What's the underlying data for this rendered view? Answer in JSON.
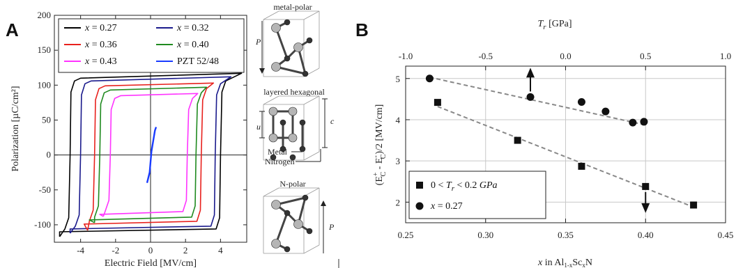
{
  "panel_a": {
    "letter": "A",
    "structure_labels": {
      "metal_polar": "metal-polar",
      "layered_hexagonal": "layered hexagonal",
      "n_polar": "N-polar",
      "p_top": "P",
      "p_bottom": "P",
      "u": "u",
      "c": "c",
      "metal": "Metal",
      "nitrogen": "Nitrogen"
    }
  },
  "panel_b": {
    "letter": "B"
  },
  "colors": {
    "x027": "#000000",
    "x032": "#1a1a8c",
    "x036": "#e8211d",
    "x040": "#1f8a1f",
    "x043": "#ff33ff",
    "pzt": "#1a3cff",
    "grid": "#c8c8c8",
    "fit": "#888888"
  },
  "chart_data": [
    {
      "type": "line",
      "xlabel": "Electric Field [MV/cm]",
      "ylabel": "Polarization [µC/cm²]",
      "xlim": [
        -5.5,
        5.5
      ],
      "ylim": [
        -125,
        200
      ],
      "xticks": [
        -4,
        -2,
        0,
        2,
        4
      ],
      "yticks": [
        -100,
        -50,
        0,
        50,
        100,
        150,
        200
      ],
      "legend_position": "top-left",
      "series": [
        {
          "name": "x = 0.27",
          "legend_var": "x",
          "legend_val": " = 0.27",
          "color_key": "x027",
          "loop": {
            "ec_pos": 4.0,
            "ec_neg": -4.6,
            "ps": 110,
            "xmax": 5.2,
            "pmax": 117,
            "xmin": -5.2,
            "pmin": -117
          }
        },
        {
          "name": "x = 0.32",
          "legend_var": "x",
          "legend_val": " = 0.32",
          "color_key": "x032",
          "loop": {
            "ec_pos": 3.7,
            "ec_neg": -4.0,
            "ps": 106,
            "xmax": 4.6,
            "pmax": 112,
            "xmin": -4.6,
            "pmin": -112
          }
        },
        {
          "name": "x = 0.36",
          "legend_var": "x",
          "legend_val": " = 0.36",
          "color_key": "x036",
          "loop": {
            "ec_pos": 2.9,
            "ec_neg": -3.2,
            "ps": 99,
            "xmax": 3.6,
            "pmax": 103,
            "xmin": -3.6,
            "pmin": -108
          }
        },
        {
          "name": "x = 0.40",
          "legend_var": "x",
          "legend_val": " = 0.40",
          "color_key": "x040",
          "loop": {
            "ec_pos": 2.6,
            "ec_neg": -2.9,
            "ps": 93,
            "xmax": 3.2,
            "pmax": 97,
            "xmin": -3.2,
            "pmin": -97
          }
        },
        {
          "name": "x = 0.43",
          "legend_var": "x",
          "legend_val": " = 0.43",
          "color_key": "x043",
          "loop": {
            "ec_pos": 2.1,
            "ec_neg": -2.3,
            "ps": 85,
            "xmax": 2.7,
            "pmax": 88,
            "xmin": -2.7,
            "pmin": -88
          }
        },
        {
          "name": "PZT 52/48",
          "legend_var": "",
          "legend_val": "PZT 52/48",
          "color_key": "pzt",
          "points": [
            [
              -0.2,
              -40
            ],
            [
              -0.05,
              -25
            ],
            [
              0.0,
              -10
            ],
            [
              0.05,
              5
            ],
            [
              0.15,
              20
            ],
            [
              0.25,
              35
            ],
            [
              0.32,
              40
            ]
          ]
        }
      ]
    },
    {
      "type": "scatter",
      "xlabel_pre": "x",
      "xlabel": " in Al",
      "xlabel_sub1": "1-x",
      "xlabel_mid": "Sc",
      "xlabel_sub2": "x",
      "xlabel_post": "N",
      "x2label_var": "T",
      "x2label_sub": "r",
      "x2label_post": " [GPa]",
      "ylabel_main": "(E",
      "ylabel_sup1": "+",
      "ylabel_sub1": "C",
      "ylabel_mid": " - E",
      "ylabel_sup2": "-",
      "ylabel_sub2": "C",
      "ylabel_post": ")/2 [MV/cm]",
      "xlim": [
        0.25,
        0.45
      ],
      "x2lim": [
        -1.0,
        1.0
      ],
      "ylim": [
        1.5,
        5.3
      ],
      "xticks": [
        "0.25",
        "0.30",
        "0.35",
        "0.40",
        "0.45"
      ],
      "x2ticks": [
        "-1.0",
        "-0.5",
        "0.0",
        "0.5",
        "1.0"
      ],
      "yticks": [
        "2",
        "3",
        "4",
        "5"
      ],
      "grid": true,
      "legend_position": "bottom-left",
      "series": [
        {
          "name": "0 < Tr < 0.2 GPa",
          "legend_pre": "0 < ",
          "legend_var": "T",
          "legend_sub": "r",
          "legend_post": " < 0.2 ",
          "legend_unit": "GPa",
          "marker": "square",
          "axis": "x",
          "x": [
            0.27,
            0.32,
            0.36,
            0.4,
            0.43
          ],
          "y": [
            4.42,
            3.5,
            2.87,
            2.38,
            1.93
          ],
          "fit": [
            [
              0.27,
              4.32
            ],
            [
              0.43,
              1.88
            ]
          ]
        },
        {
          "name": "x = 0.27",
          "legend_pre": "",
          "legend_var": "x",
          "legend_sub": "",
          "legend_post": " = 0.27",
          "legend_unit": "",
          "marker": "circle",
          "axis": "x2",
          "x": [
            -0.85,
            -0.22,
            0.1,
            0.25,
            0.42,
            0.49
          ],
          "y": [
            5.0,
            4.55,
            4.43,
            4.2,
            3.93,
            3.95
          ],
          "fit": [
            [
              -0.85,
              5.03
            ],
            [
              0.49,
              3.88
            ]
          ]
        }
      ]
    }
  ]
}
